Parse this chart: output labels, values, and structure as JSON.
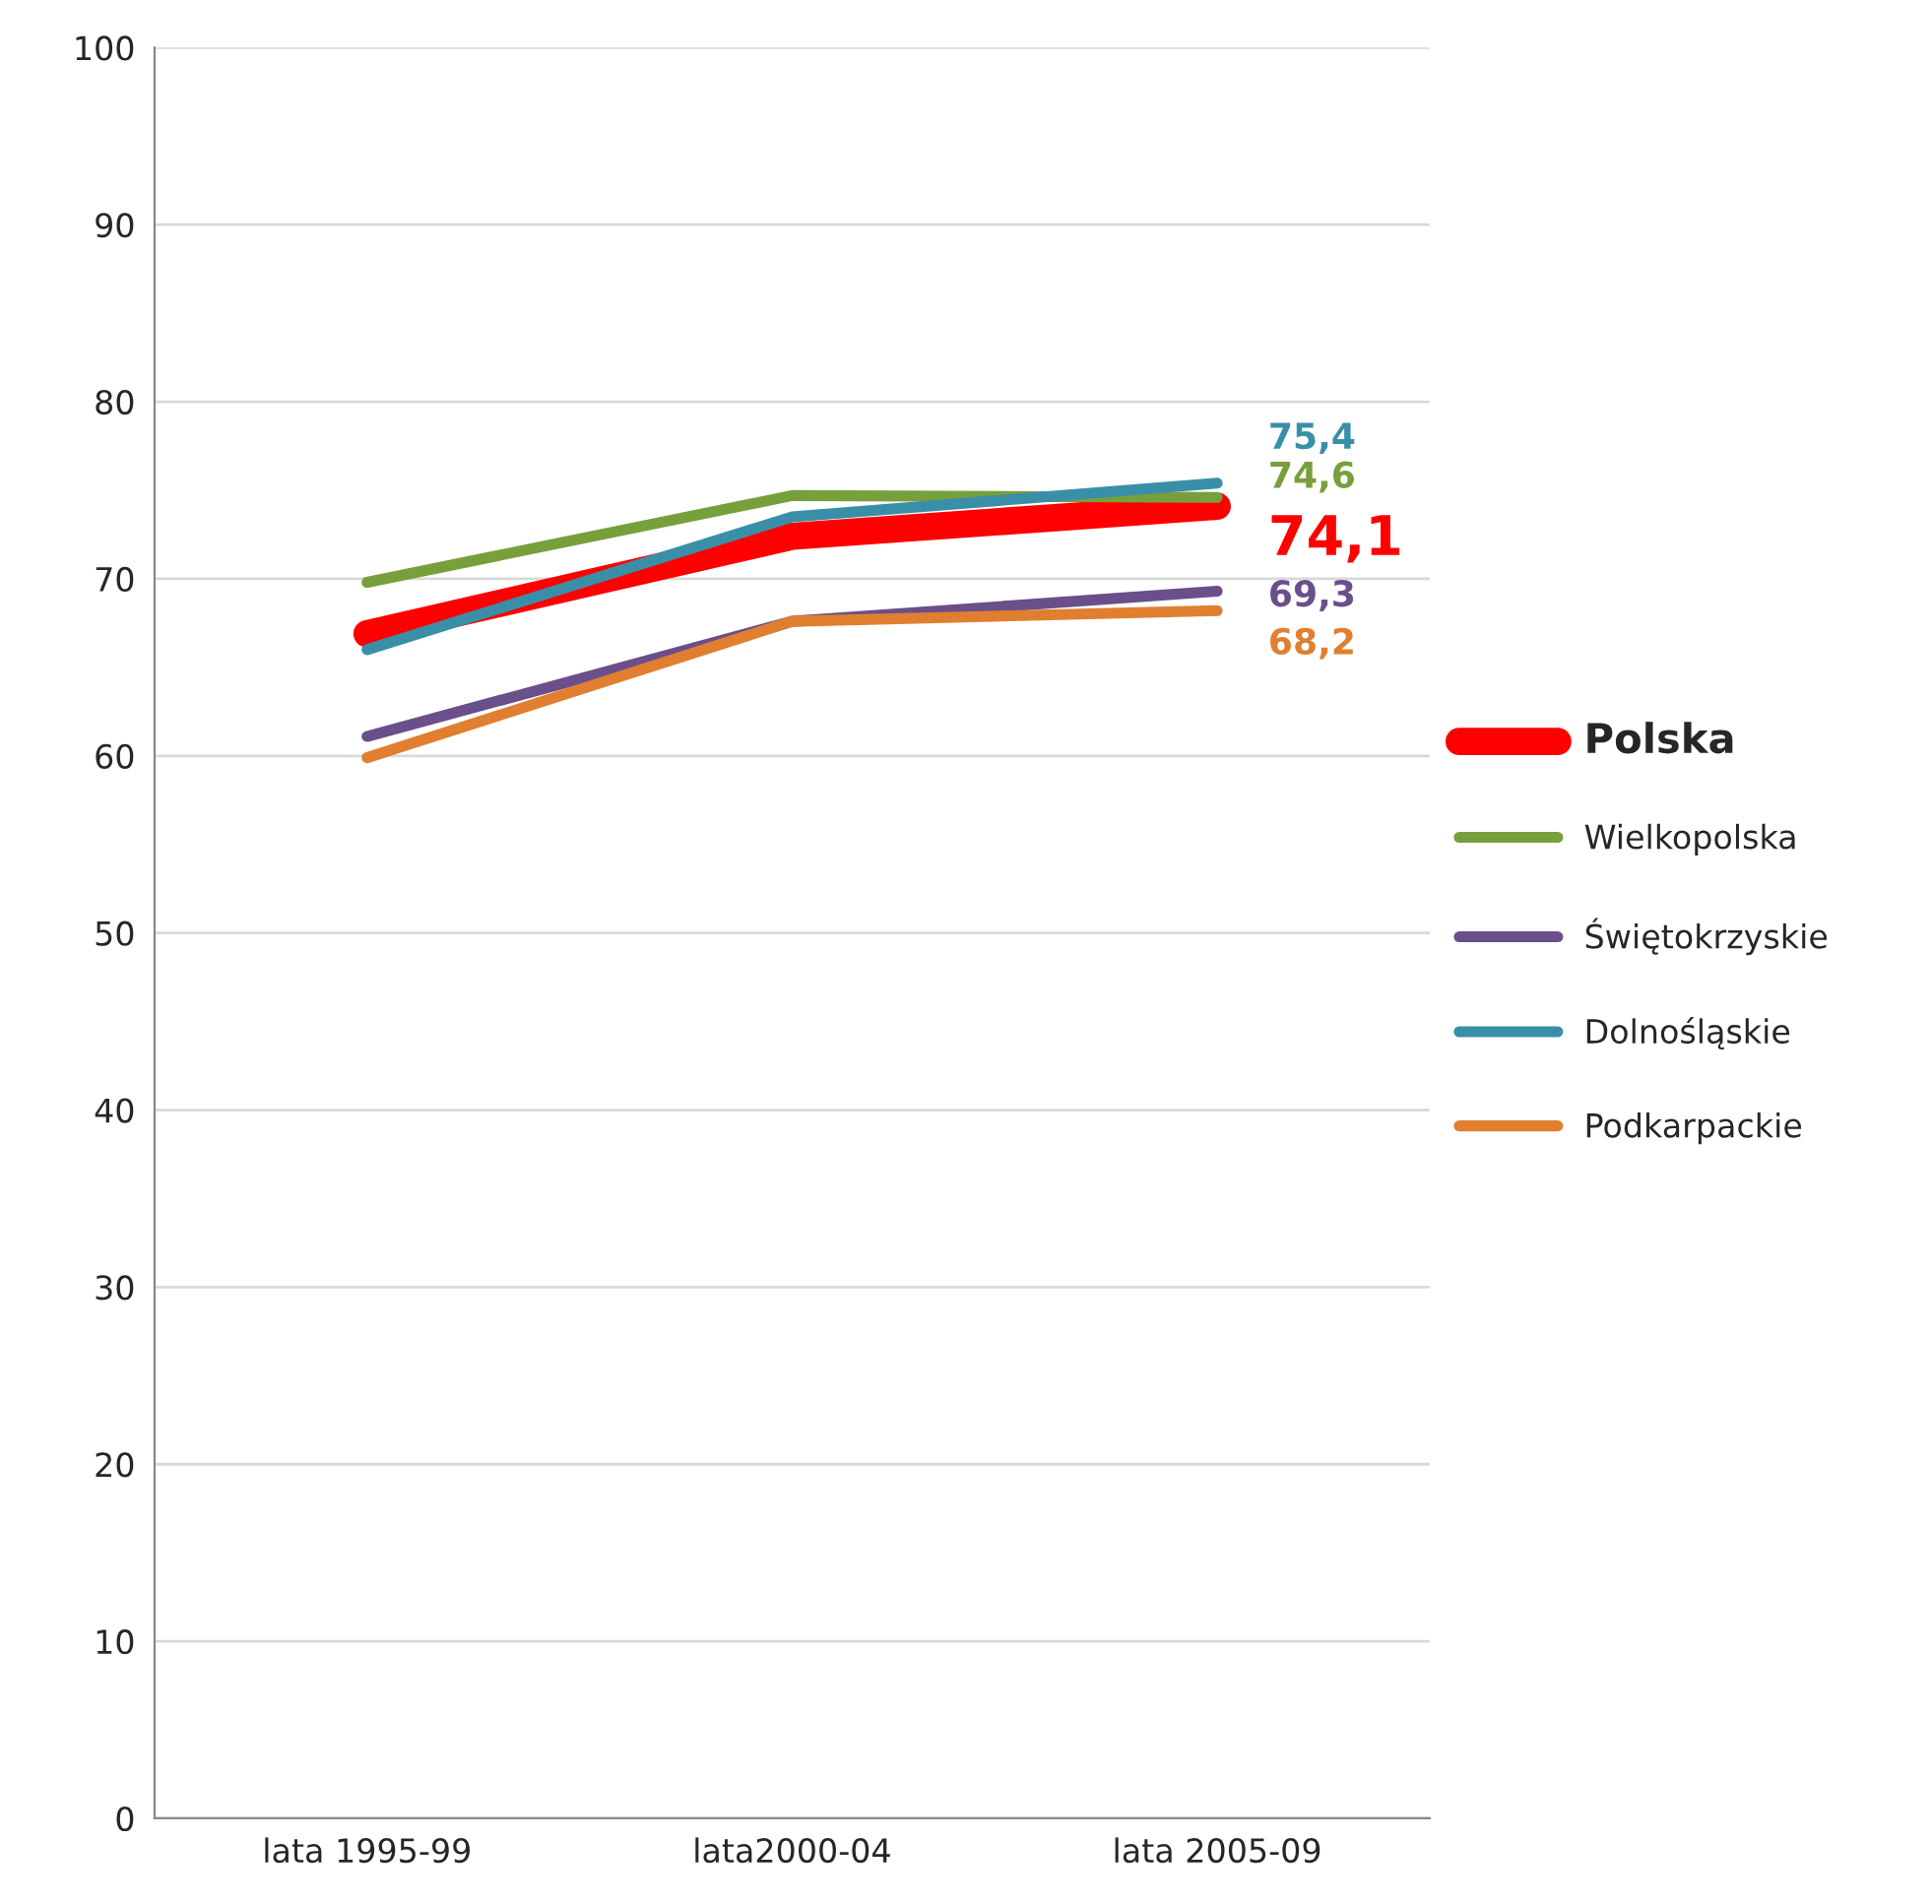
{
  "chart_data": {
    "type": "line",
    "categories": [
      "lata 1995-99",
      "lata2000-04",
      "lata 2005-09"
    ],
    "series": [
      {
        "name": "Polska",
        "color": "#ff0000",
        "values": [
          66.9,
          72.4,
          74.1
        ],
        "value_labels": [
          null,
          null,
          "74,1"
        ]
      },
      {
        "name": "Wielkopolska",
        "color": "#77a03c",
        "values": [
          69.8,
          74.7,
          74.6
        ],
        "value_labels": [
          null,
          null,
          "74,6"
        ]
      },
      {
        "name": "Świętokrzyskie",
        "color": "#6a4f8a",
        "values": [
          61.1,
          67.6,
          69.3
        ],
        "value_labels": [
          null,
          null,
          "69,3"
        ]
      },
      {
        "name": "Dolnośląskie",
        "color": "#3a8fa8",
        "values": [
          66.0,
          73.5,
          75.4
        ],
        "value_labels": [
          null,
          null,
          "75,4"
        ]
      },
      {
        "name": "Podkarpackie",
        "color": "#e07f30",
        "values": [
          59.9,
          67.6,
          68.2
        ],
        "value_labels": [
          null,
          null,
          "68,2"
        ]
      }
    ],
    "ylim": [
      0,
      100
    ],
    "yticks": [
      0,
      10,
      20,
      30,
      40,
      50,
      60,
      70,
      80,
      90,
      100
    ],
    "grid": "y",
    "legend": "right",
    "marker": "none",
    "line_style": "solid"
  }
}
